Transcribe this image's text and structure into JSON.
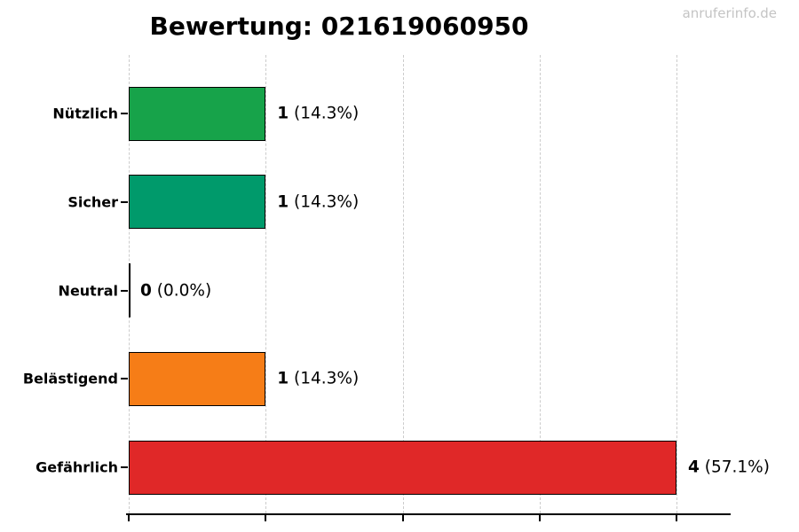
{
  "page": {
    "watermark": "anruferinfo.de"
  },
  "chart_data": {
    "type": "bar",
    "orientation": "horizontal",
    "title": "Bewertung: 021619060950",
    "categories": [
      "Nützlich",
      "Sicher",
      "Neutral",
      "Belästigend",
      "Gefährlich"
    ],
    "values": [
      1,
      1,
      0,
      1,
      4
    ],
    "percent_values": [
      14.3,
      14.3,
      0.0,
      14.3,
      57.1
    ],
    "bar_labels": [
      {
        "count": "1",
        "pct": "(14.3%)"
      },
      {
        "count": "1",
        "pct": "(14.3%)"
      },
      {
        "count": "0",
        "pct": "(0.0%)"
      },
      {
        "count": "1",
        "pct": "(14.3%)"
      },
      {
        "count": "4",
        "pct": "(57.1%)"
      }
    ],
    "colors": [
      "#17a34a",
      "#009a6b",
      "#000000",
      "#f67d17",
      "#e02828"
    ],
    "bar_edge_color": "#000000",
    "xlim": [
      0,
      4.4
    ],
    "xticks": [
      0,
      1,
      2,
      3,
      4
    ],
    "xtick_labels_visible": false,
    "grid": "vertical-dashed",
    "grid_color": "#cccccc",
    "legend": "none"
  }
}
